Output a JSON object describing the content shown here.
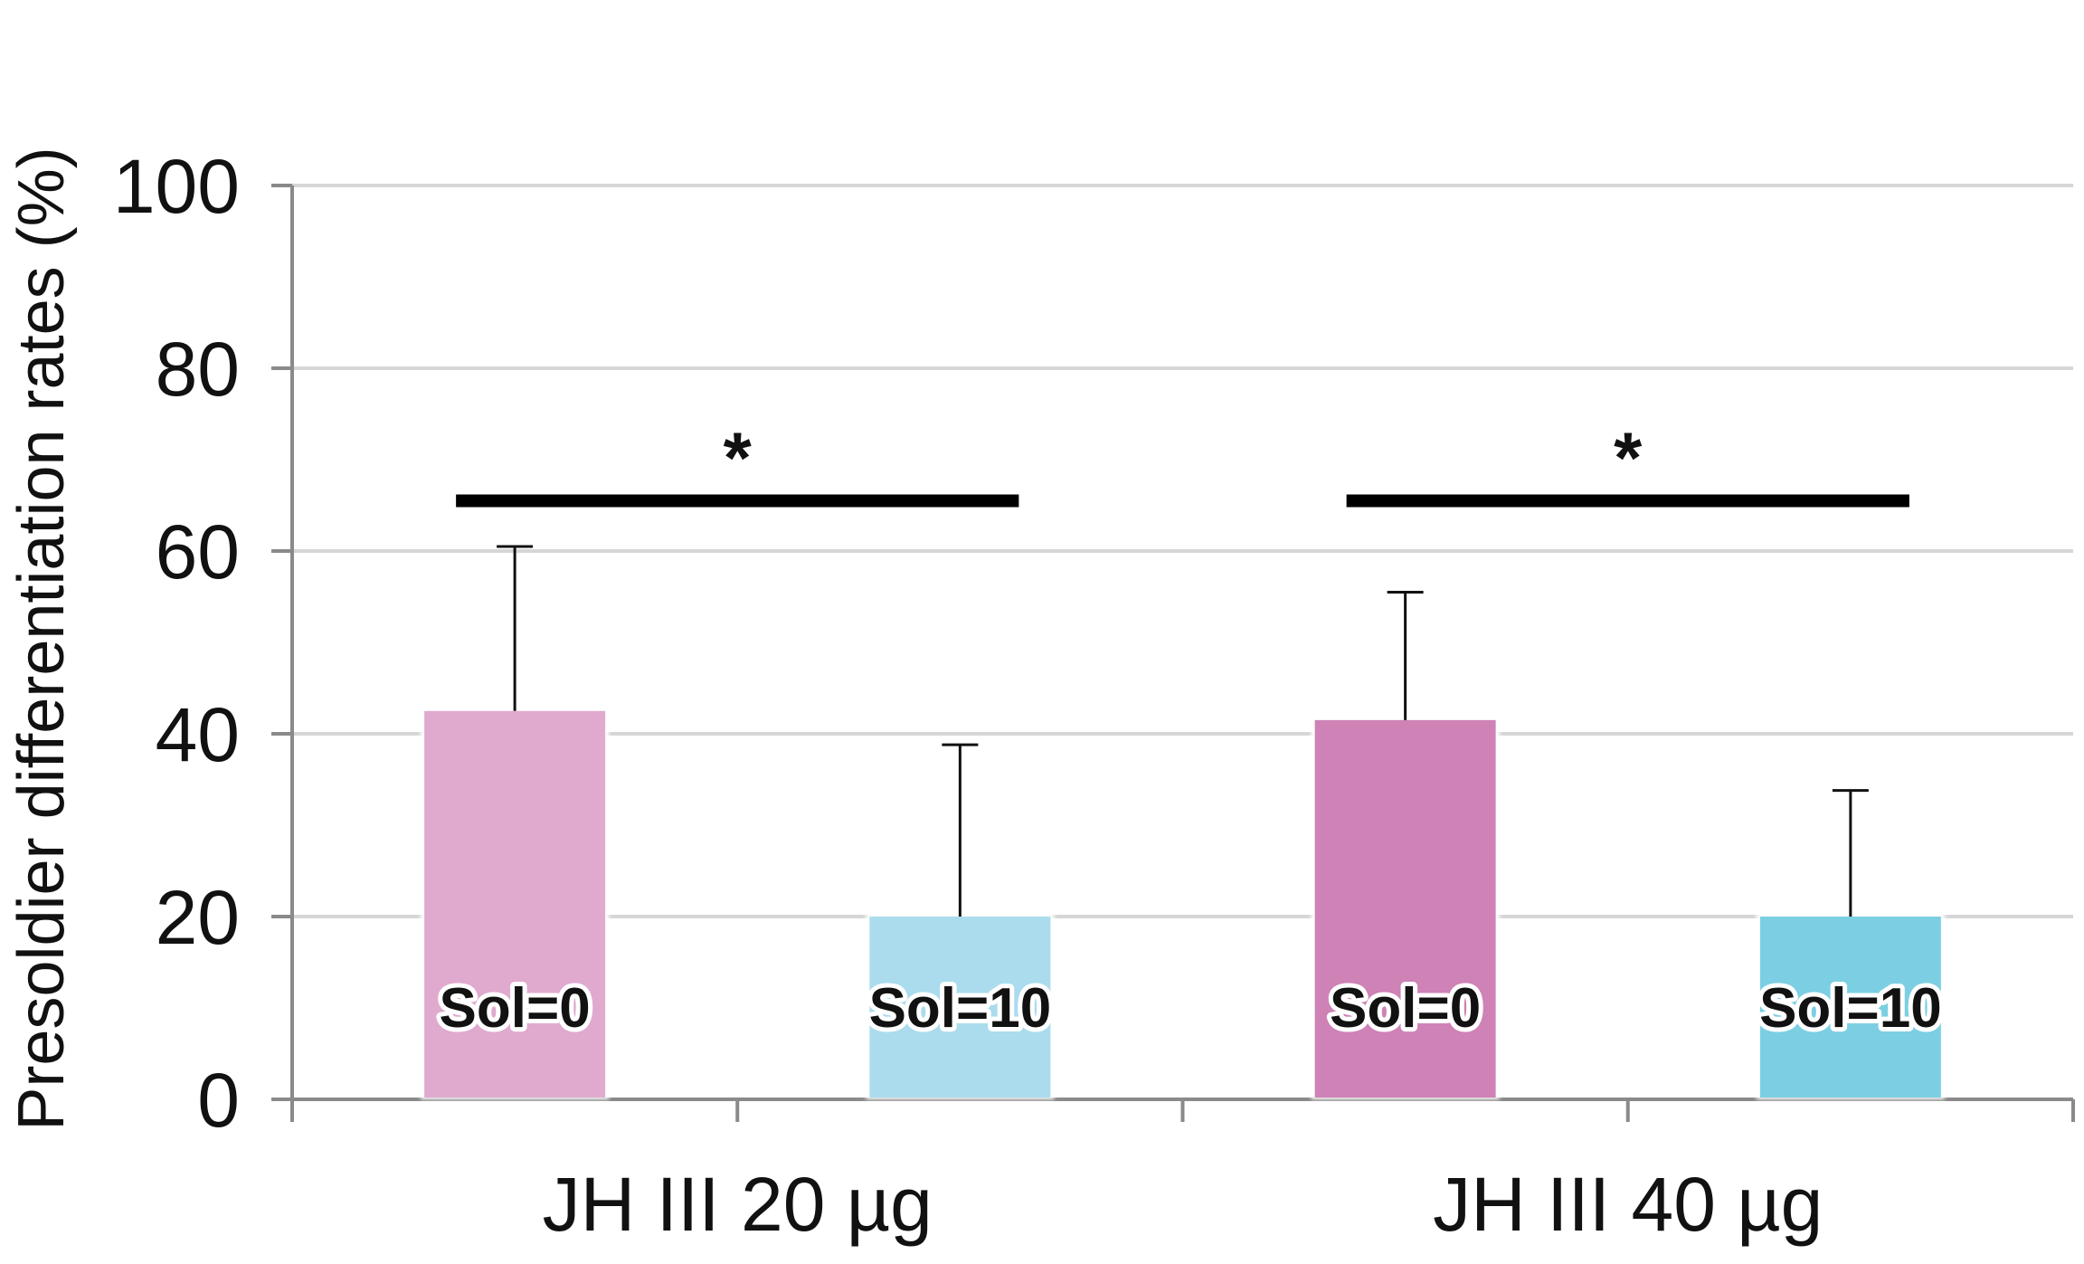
{
  "chart_data": {
    "type": "bar",
    "ylabel": "Presoldier differentiation rates (%)",
    "xlabel": "",
    "ylim": [
      0,
      100
    ],
    "yticks": [
      0,
      20,
      40,
      60,
      80,
      100
    ],
    "grid": true,
    "groups": [
      {
        "label": "JH III 20 µg",
        "bars": [
          {
            "label": "Sol=0",
            "value": 42.5,
            "error": 18,
            "color": "#e0aacf"
          },
          {
            "label": "Sol=10",
            "value": 20,
            "error": 18.8,
            "color": "#aadcee"
          }
        ],
        "significance": "*"
      },
      {
        "label": "JH III 40 µg",
        "bars": [
          {
            "label": "Sol=0",
            "value": 41.5,
            "error": 14,
            "color": "#ce82b6"
          },
          {
            "label": "Sol=10",
            "value": 20,
            "error": 13.8,
            "color": "#7ccfe3"
          }
        ],
        "significance": "*"
      }
    ],
    "significance_bar_y": 65.5
  }
}
